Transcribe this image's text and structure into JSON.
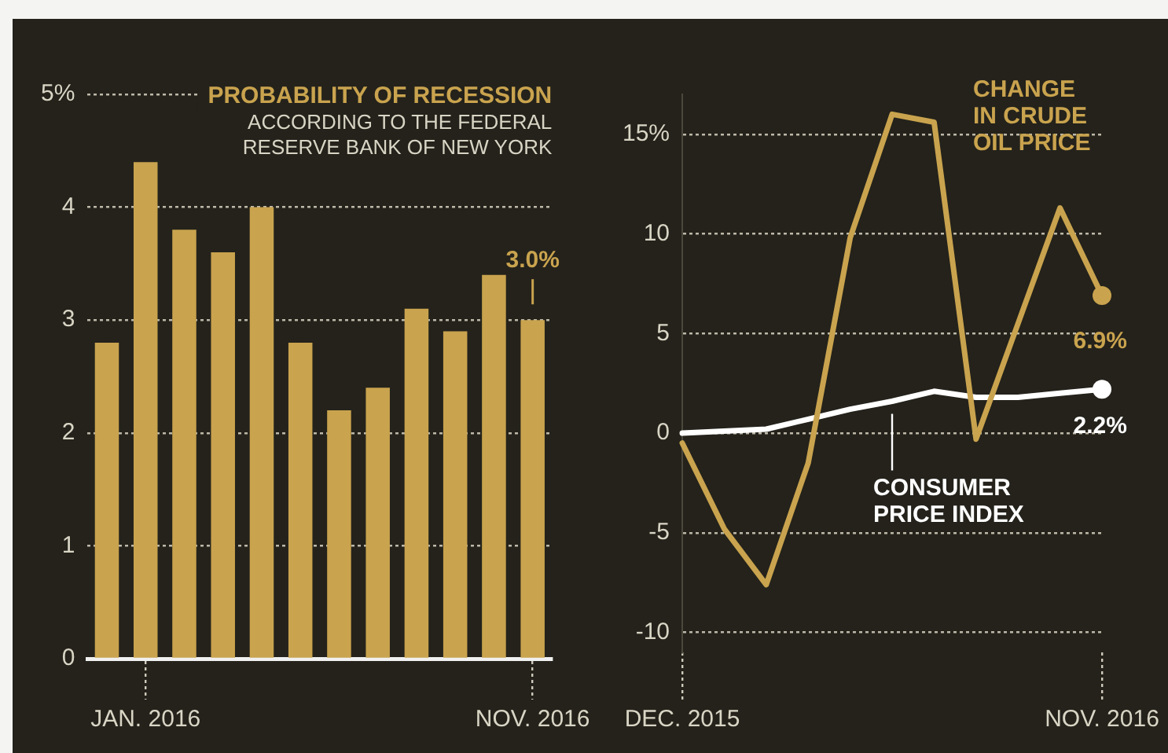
{
  "chart_data": [
    {
      "type": "bar",
      "title": "PROBABILITY OF RECESSION",
      "subtitle": "ACCORDING TO THE FEDERAL RESERVE BANK OF NEW YORK",
      "categories": [
        null,
        "JAN. 2016",
        null,
        null,
        null,
        null,
        null,
        null,
        null,
        null,
        null,
        "NOV. 2016"
      ],
      "values": [
        2.8,
        4.4,
        3.8,
        3.6,
        4.0,
        2.8,
        2.2,
        2.4,
        3.1,
        2.9,
        3.4,
        3.0
      ],
      "value_labels": [
        null,
        null,
        null,
        null,
        null,
        null,
        null,
        null,
        null,
        null,
        null,
        "3.0%"
      ],
      "color": "#c9a34e",
      "ylim": [
        0,
        5
      ],
      "yticks": [
        0,
        1,
        2,
        3,
        4,
        {
          "value": 5,
          "label": "5%"
        }
      ],
      "grid": "y"
    },
    {
      "type": "line",
      "categories": [
        "DEC. 2015",
        null,
        null,
        null,
        null,
        null,
        null,
        null,
        null,
        null,
        "NOV. 2016"
      ],
      "series": [
        {
          "name": "CHANGE IN CRUDE OIL PRICE",
          "color": "#c9a34e",
          "values": [
            -0.5,
            -4.8,
            -7.6,
            -1.5,
            9.8,
            16.0,
            15.6,
            -0.3,
            5.5,
            11.3,
            6.9
          ],
          "value_labels": [
            null,
            null,
            null,
            null,
            null,
            null,
            null,
            null,
            null,
            null,
            "6.9%"
          ]
        },
        {
          "name": "CONSUMER PRICE INDEX",
          "color": "#ffffff",
          "values": [
            0.0,
            0.1,
            0.2,
            0.7,
            1.2,
            1.6,
            2.1,
            1.8,
            1.8,
            2.0,
            2.2
          ],
          "value_labels": [
            null,
            null,
            null,
            null,
            null,
            null,
            null,
            null,
            null,
            null,
            "2.2%"
          ]
        }
      ],
      "ylim": [
        -11,
        17
      ],
      "yticks": [
        -10,
        -5,
        0,
        5,
        10,
        {
          "value": 15,
          "label": "15%"
        }
      ],
      "grid": "y"
    }
  ]
}
